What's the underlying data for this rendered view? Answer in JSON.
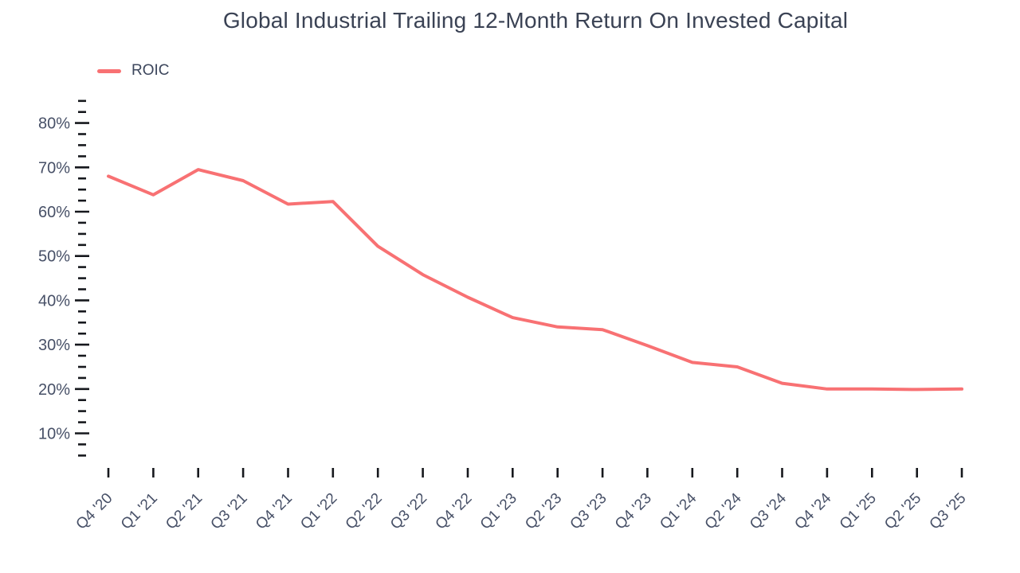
{
  "title": "Global Industrial Trailing 12-Month Return On Invested Capital",
  "legend": {
    "label": "ROIC",
    "swatch_color": "#F87173"
  },
  "colors": {
    "line": "#F87173",
    "title_text": "#3A4254",
    "axis_label_text": "#475067",
    "legend_text": "#3C465C",
    "tick_mark": "#16181D",
    "background": "#FFFFFF"
  },
  "chart_data": {
    "type": "line",
    "title": "Global Industrial Trailing 12-Month Return On Invested Capital",
    "categories": [
      "Q4 '20",
      "Q1 '21",
      "Q2 '21",
      "Q3 '21",
      "Q4 '21",
      "Q1 '22",
      "Q2 '22",
      "Q3 '22",
      "Q4 '22",
      "Q1 '23",
      "Q2 '23",
      "Q3 '23",
      "Q4 '23",
      "Q1 '24",
      "Q2 '24",
      "Q3 '24",
      "Q4 '24",
      "Q1 '25",
      "Q2 '25",
      "Q3 '25"
    ],
    "series": [
      {
        "name": "ROIC",
        "values": [
          68.0,
          63.8,
          69.5,
          67.0,
          61.7,
          62.3,
          52.2,
          45.8,
          40.7,
          36.1,
          34.0,
          33.4,
          29.8,
          26.0,
          25.0,
          21.3,
          20.0,
          20.0,
          19.9,
          20.0
        ]
      }
    ],
    "xlabel": "",
    "ylabel": "",
    "unit": "%",
    "y_axis": {
      "min": 5,
      "max": 85,
      "minor_step": 2.5,
      "major_step": 10,
      "tick_labels": [
        "10%",
        "20%",
        "30%",
        "40%",
        "50%",
        "60%",
        "70%",
        "80%"
      ]
    },
    "grid": false,
    "legend_position": "top-left",
    "x_label_rotation_deg": -45
  }
}
